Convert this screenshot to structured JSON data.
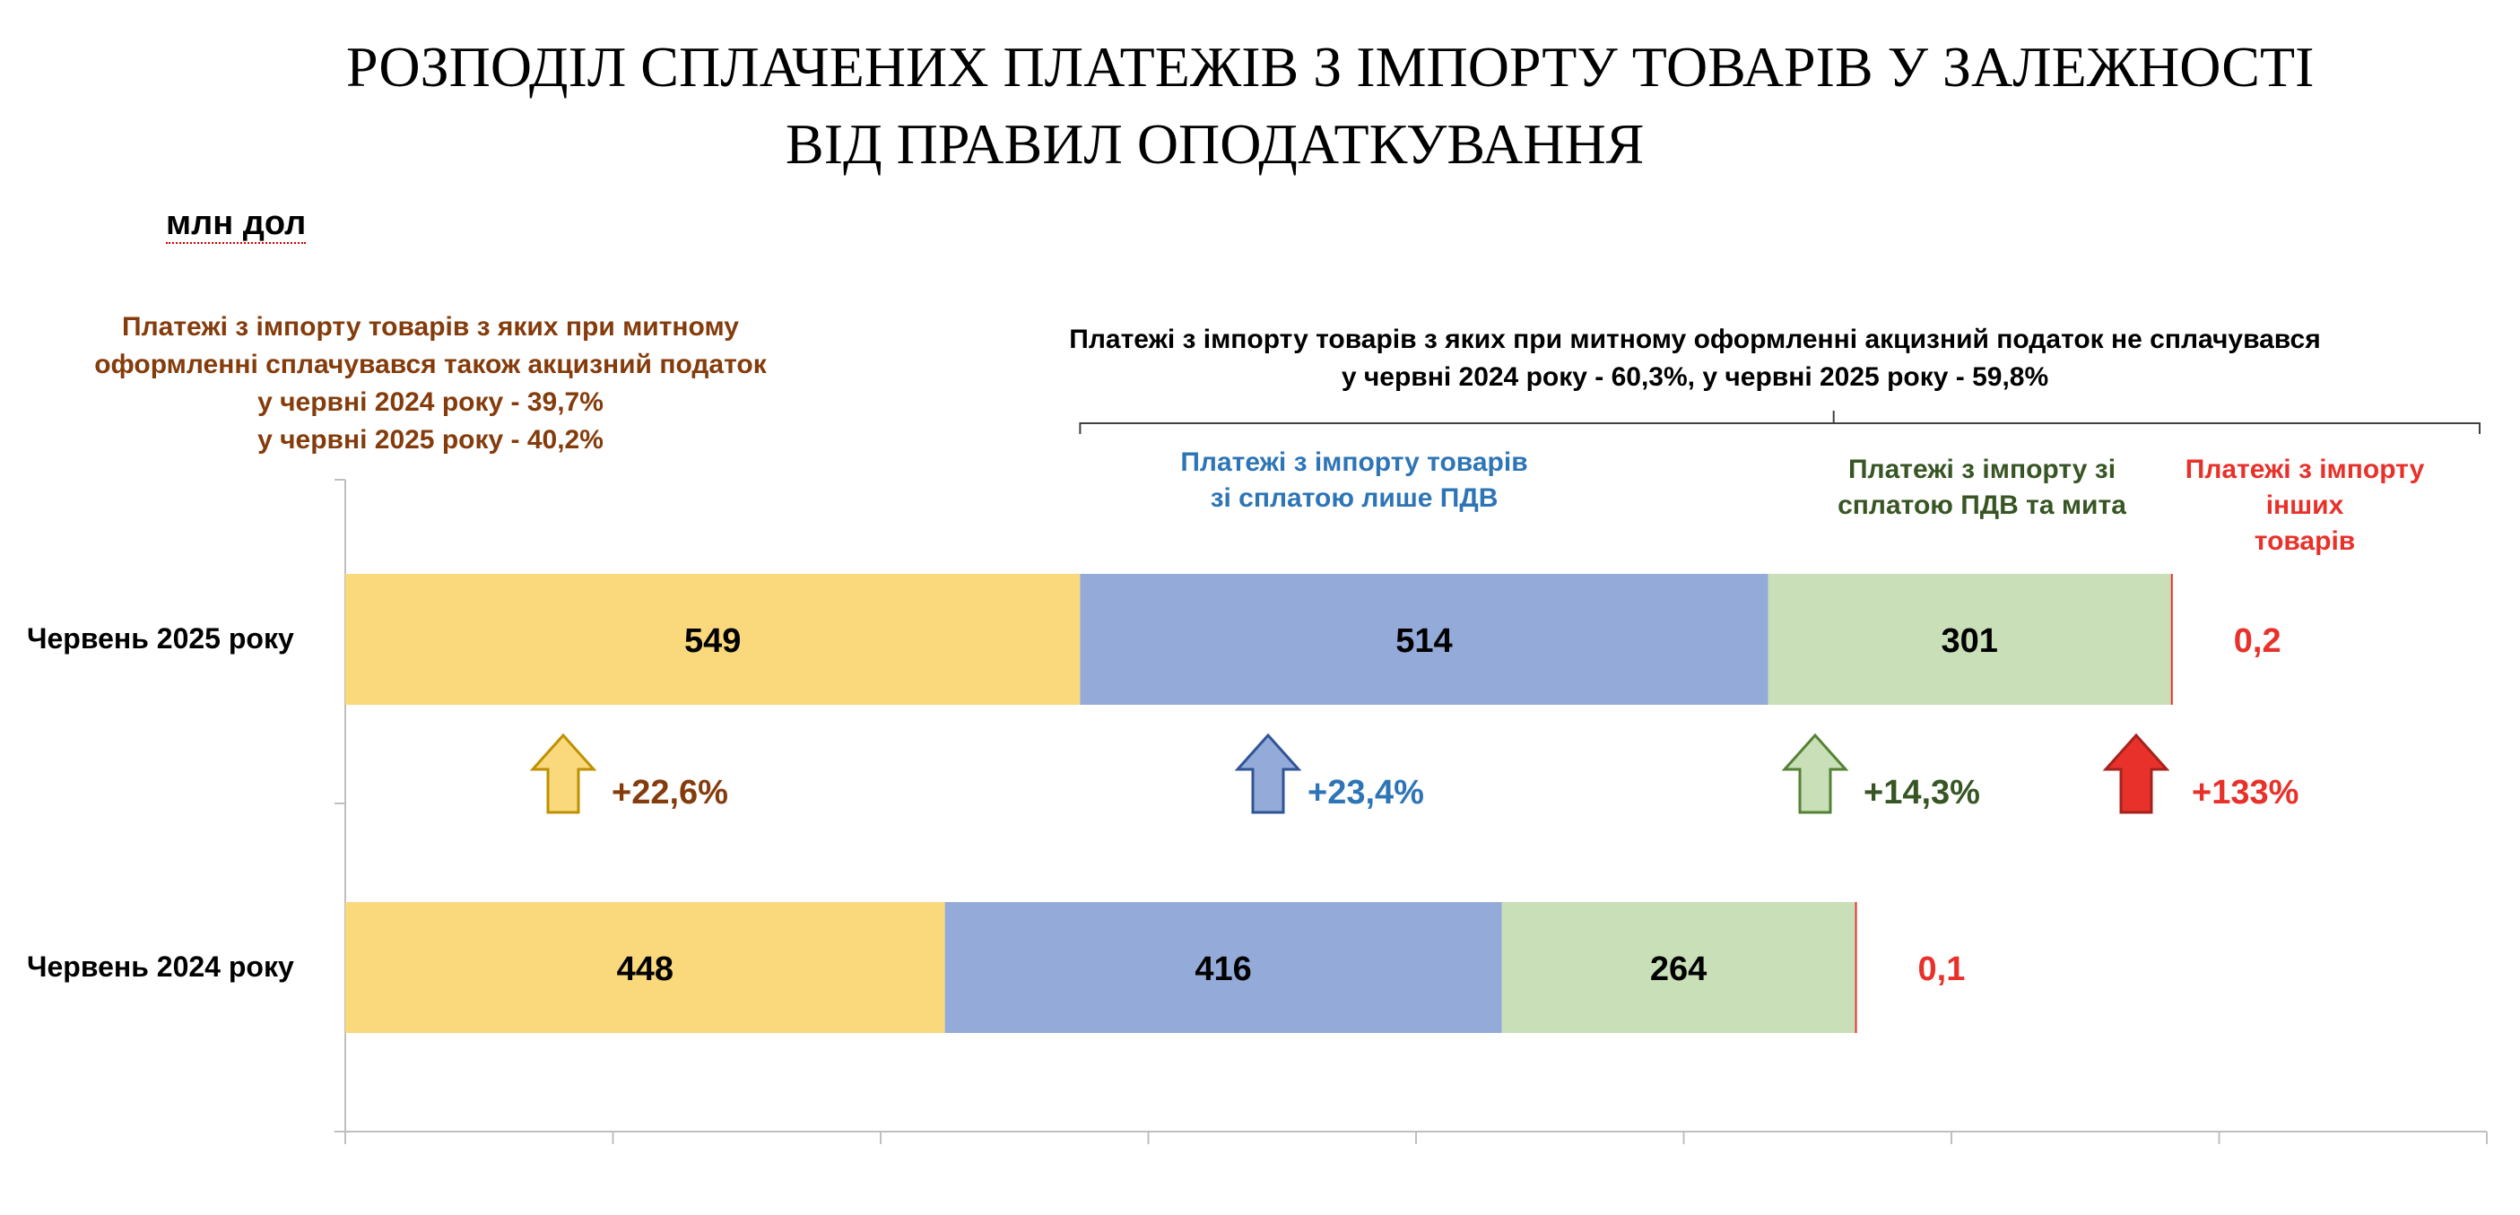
{
  "title": {
    "line1": "РОЗПОДІЛ СПЛАЧЕНИХ ПЛАТЕЖІВ З ІМПОРТУ ТОВАРІВ У ЗАЛЕЖНОСТІ",
    "line2": "ВІД ПРАВИЛ ОПОДАТКУВАННЯ"
  },
  "unit": "млн дол",
  "annotations": {
    "excise": {
      "line1": "Платежі з імпорту товарів з яких при митному",
      "line2": "оформленні сплачувався також акцизний податок",
      "line3": "у червні 2024 року  - 39,7%",
      "line4": "у червні 2025 року - 40,2%"
    },
    "non_excise": {
      "line1": "Платежі з імпорту товарів з яких при митному оформленні акцизний податок не сплачувався",
      "line2": "у червні 2024 року  - 60,3%, у червні 2025 року - 59,8%"
    },
    "vat_only": {
      "line1": "Платежі з імпорту товарів",
      "line2": "зі сплатою лише ПДВ"
    },
    "vat_duty": {
      "line1": "Платежі з імпорту зі",
      "line2": "сплатою ПДВ та мита"
    },
    "other": {
      "line1": "Платежі з імпорту",
      "line2": "інших",
      "line3": "товарів"
    }
  },
  "colors": {
    "excise": "#f9d97c",
    "vat_only": "#94aad8",
    "vat_duty": "#c9dfb7",
    "other": "#e8312a",
    "excise_text": "#843c0c",
    "vat_only_text": "#2e75b6",
    "vat_duty_text": "#375623",
    "other_text": "#e8312a"
  },
  "chart_data": {
    "type": "bar",
    "orientation": "horizontal",
    "stacked": true,
    "categories": [
      "Червень 2025 року",
      "Червень 2024 року"
    ],
    "series": [
      {
        "key": "excise",
        "values": [
          549,
          448
        ]
      },
      {
        "key": "vat_only",
        "values": [
          514,
          416
        ]
      },
      {
        "key": "vat_duty",
        "values": [
          301,
          264
        ]
      },
      {
        "key": "other",
        "values": [
          0.2,
          0.1
        ]
      }
    ],
    "value_labels": [
      [
        "549",
        "514",
        "301",
        "0,2"
      ],
      [
        "448",
        "416",
        "264",
        "0,1"
      ]
    ],
    "xlim": [
      0,
      1600
    ],
    "grid": false,
    "changes": [
      {
        "key": "excise",
        "label": "+22,6%",
        "arrow": "up"
      },
      {
        "key": "vat_only",
        "label": "+23,4%",
        "arrow": "up"
      },
      {
        "key": "vat_duty",
        "label": "+14,3%",
        "arrow": "up"
      },
      {
        "key": "other",
        "label": "+133%",
        "arrow": "up"
      }
    ]
  }
}
